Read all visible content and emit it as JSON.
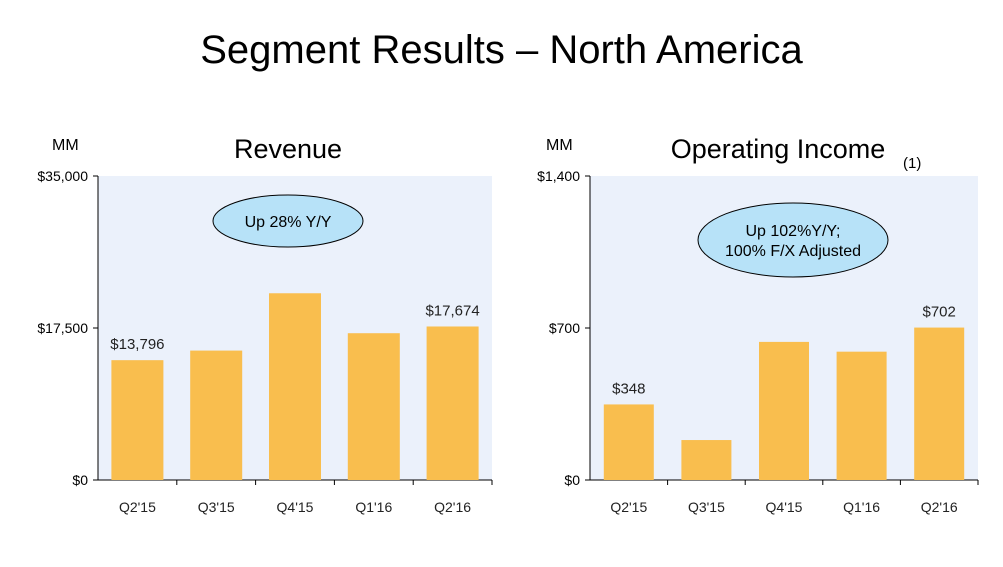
{
  "page": {
    "title": "Segment Results – North America"
  },
  "colors": {
    "bar": "#F9BE4E",
    "plot_bg": "#EBF1FB",
    "callout_fill": "#B7E2F8",
    "axis": "#000000"
  },
  "chart_data": [
    {
      "type": "bar",
      "title": "Revenue",
      "unit": "MM",
      "categories": [
        "Q2'15",
        "Q3'15",
        "Q4'15",
        "Q1'16",
        "Q2'16"
      ],
      "values": [
        13796,
        14900,
        21500,
        16900,
        17674
      ],
      "data_labels": [
        "$13,796",
        "",
        "",
        "",
        "$17,674"
      ],
      "ylim": [
        0,
        35000
      ],
      "yticks": [
        0,
        17500,
        35000
      ],
      "ytick_labels": [
        "$0",
        "$17,500",
        "$35,000"
      ],
      "callout": [
        "Up 28% Y/Y"
      ],
      "footnote": ""
    },
    {
      "type": "bar",
      "title": "Operating Income",
      "unit": "MM",
      "categories": [
        "Q2'15",
        "Q3'15",
        "Q4'15",
        "Q1'16",
        "Q2'16"
      ],
      "values": [
        348,
        184,
        636,
        591,
        702
      ],
      "data_labels": [
        "$348",
        "",
        "",
        "",
        "$702"
      ],
      "ylim": [
        0,
        1400
      ],
      "yticks": [
        0,
        700,
        1400
      ],
      "ytick_labels": [
        "$0",
        "$700",
        "$1,400"
      ],
      "callout": [
        "Up 102%Y/Y;",
        "100% F/X Adjusted"
      ],
      "footnote": "(1)"
    }
  ]
}
